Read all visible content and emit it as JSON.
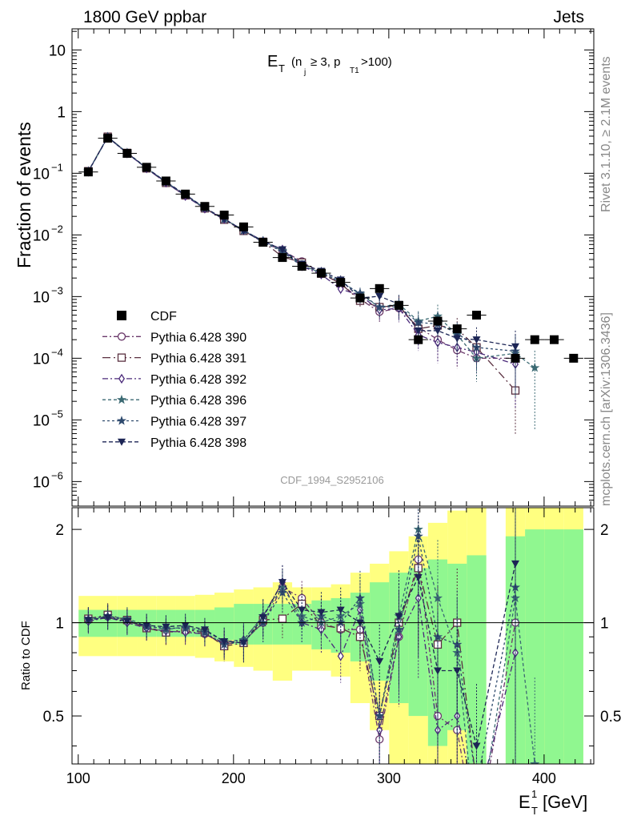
{
  "header": {
    "left": "1800 GeV ppbar",
    "right": "Jets"
  },
  "side": {
    "top": "Rivet 3.1.10, ≥ 2.1M events",
    "bottom": "mcplots.cern.ch [arXiv:1306.3436]"
  },
  "upper": {
    "title_main": "E",
    "title_sub": "T",
    "title_rest": "(n",
    "title_j": "j",
    "title_mid": "≥ 3, p",
    "title_t1": "T1",
    "title_end": ">100)",
    "ylabel": "Fraction of events",
    "watermark": "CDF_1994_S2952106",
    "yticks": [
      {
        "base": "10",
        "exp": "",
        "value": 10
      },
      {
        "base": "1",
        "exp": "",
        "value": 1
      },
      {
        "base": "10",
        "exp": "−1",
        "value": 0.1
      },
      {
        "base": "10",
        "exp": "−2",
        "value": 0.01
      },
      {
        "base": "10",
        "exp": "−3",
        "value": 0.001
      },
      {
        "base": "10",
        "exp": "−4",
        "value": 0.0001
      },
      {
        "base": "10",
        "exp": "−5",
        "value": 1e-05
      },
      {
        "base": "10",
        "exp": "−6",
        "value": 1e-06
      }
    ]
  },
  "lower": {
    "ylabel": "Ratio to CDF",
    "yticks": [
      "0.5",
      "1",
      "2"
    ]
  },
  "xaxis": {
    "label_main": "E",
    "label_sup": "1",
    "label_sub": "T",
    "label_unit": "[GeV]",
    "ticks": [
      "100",
      "200",
      "300",
      "400"
    ]
  },
  "colors": {
    "band_inner": "#90f790",
    "band_outer": "#ffff80",
    "data": "#000000",
    "s390": "#6b3a6b",
    "s391": "#5a3040",
    "s392": "#4b2a7a",
    "s396": "#3b6a73",
    "s397": "#2e4a6e",
    "s398": "#1c2555"
  },
  "chart_data": {
    "type": "scatter",
    "log_y_upper": true,
    "ylim_upper": [
      4e-07,
      22
    ],
    "ylim_lower": [
      0.35,
      2.35
    ],
    "xlim": [
      96,
      432
    ],
    "legend_placement": "center-left",
    "data": {
      "name": "CDF",
      "x": [
        106.5,
        119,
        131.5,
        144,
        156.5,
        169,
        181.5,
        194,
        206.5,
        219,
        231.5,
        244,
        256.5,
        269,
        281.5,
        294,
        306.5,
        319,
        331.5,
        344,
        356.5,
        381.5,
        394,
        406.5,
        419
      ],
      "y": [
        0.105,
        0.37,
        0.21,
        0.125,
        0.075,
        0.046,
        0.029,
        0.021,
        0.0135,
        0.0076,
        0.0043,
        0.0031,
        0.0024,
        0.0017,
        0.00095,
        0.00135,
        0.00072,
        0.0002,
        0.0004,
        0.0003,
        0.0005,
        0.0001,
        0.0002,
        0.0002,
        0.0001
      ],
      "band_inner": [
        0.1,
        0.1,
        0.1,
        0.1,
        0.1,
        0.1,
        0.1,
        0.12,
        0.15,
        0.15,
        0.15,
        0.15,
        0.18,
        0.2,
        0.25,
        0.35,
        0.45,
        0.5,
        0.6,
        0.55,
        0.65,
        0.9,
        1.0,
        1.0,
        1.0
      ],
      "band_outer": [
        0.22,
        0.22,
        0.22,
        0.22,
        0.22,
        0.22,
        0.23,
        0.25,
        0.28,
        0.3,
        0.35,
        0.3,
        0.3,
        0.33,
        0.45,
        0.55,
        0.7,
        0.9,
        1.1,
        1.3,
        1.4,
        1.5,
        1.5,
        1.5,
        1.6
      ]
    },
    "series": [
      {
        "name": "Pythia 6.428 390",
        "marker": "circle",
        "dash": "6,3,2,3",
        "ratio": [
          1.02,
          1.05,
          1.01,
          0.97,
          0.93,
          0.94,
          0.92,
          0.85,
          0.87,
          1.0,
          1.3,
          1.2,
          1.0,
          0.95,
          0.95,
          0.42,
          0.9,
          1.6,
          0.5,
          0.45,
          0.2,
          1.0,
          null,
          null,
          null
        ]
      },
      {
        "name": "Pythia 6.428 391",
        "marker": "square",
        "dash": "10,4,2,4",
        "ratio": [
          1.03,
          1.06,
          1.02,
          0.96,
          0.93,
          0.95,
          0.93,
          0.84,
          0.86,
          1.02,
          1.03,
          1.15,
          0.98,
          0.96,
          0.9,
          0.5,
          1.0,
          1.5,
          0.85,
          1.0,
          0.3,
          0.3,
          null,
          null,
          null
        ]
      },
      {
        "name": "Pythia 6.428 392",
        "marker": "diamond",
        "dash": "7,3,2,3",
        "ratio": [
          1.01,
          1.04,
          1.0,
          0.96,
          0.94,
          0.93,
          0.92,
          0.86,
          0.88,
          1.05,
          1.35,
          1.0,
          0.95,
          0.78,
          1.1,
          0.45,
          0.9,
          1.2,
          0.45,
          0.5,
          0.25,
          0.8,
          null,
          null,
          null
        ]
      },
      {
        "name": "Pythia 6.428 396",
        "marker": "star",
        "dash": "4,3",
        "ratio": [
          1.02,
          1.05,
          1.03,
          0.98,
          0.95,
          0.97,
          0.94,
          0.87,
          0.88,
          1.05,
          1.3,
          1.05,
          1.0,
          1.05,
          1.15,
          0.5,
          1.05,
          2.0,
          1.2,
          0.8,
          0.2,
          1.2,
          0.35,
          null,
          null
        ]
      },
      {
        "name": "Pythia 6.428 397",
        "marker": "star",
        "dash": "3,3",
        "ratio": [
          1.03,
          1.05,
          1.02,
          0.97,
          0.96,
          0.96,
          0.93,
          0.85,
          0.87,
          1.0,
          1.25,
          1.0,
          1.05,
          1.0,
          1.2,
          0.5,
          0.95,
          1.9,
          0.9,
          0.85,
          0.3,
          1.3,
          null,
          null,
          null
        ]
      },
      {
        "name": "Pythia 6.428 398",
        "marker": "triangle-down",
        "dash": "5,3",
        "ratio": [
          1.02,
          1.04,
          1.01,
          0.98,
          0.97,
          0.98,
          0.95,
          0.87,
          0.86,
          1.04,
          1.35,
          1.1,
          1.08,
          1.1,
          1.0,
          0.75,
          1.05,
          1.4,
          0.7,
          0.7,
          0.4,
          1.55,
          null,
          null,
          null
        ]
      }
    ]
  }
}
